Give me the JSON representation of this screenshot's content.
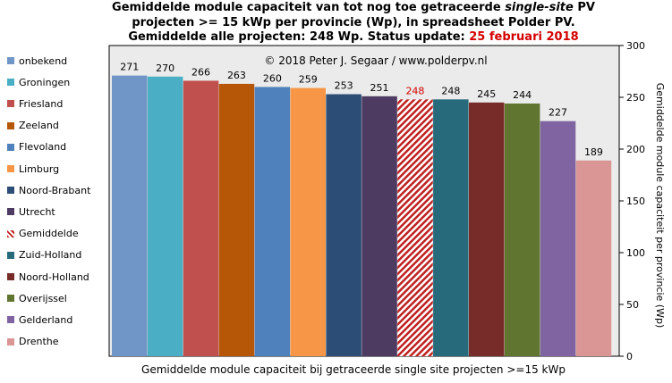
{
  "title": {
    "line1_a": "Gemiddelde module capaciteit van tot nog toe getraceerde ",
    "line1_em": "single-site",
    "line1_b": " PV",
    "line2": "projecten >= 15 kWp per provincie (Wp), in spreadsheet Polder PV.",
    "line3_a": "Gemiddelde alle projecten: 248 Wp. Status update: ",
    "line3_date": "25 februari 2018"
  },
  "copyright": "© 2018 Peter J. Segaar / www.polderpv.nl",
  "colors": {
    "highlight": "#d40000",
    "plot_bg": "#ebebeb",
    "hatch": "#c02020"
  },
  "chart_data": {
    "type": "bar",
    "title": "Gemiddelde module capaciteit van tot nog toe getraceerde single-site PV projecten >= 15 kWp per provincie (Wp), in spreadsheet Polder PV. Gemiddelde alle projecten: 248 Wp. Status update: 25 februari 2018",
    "xlabel": "Gemiddelde module capaciteit bij getraceerde single site projecten >=15 kWp",
    "ylabel": "Gemiddelde module capaciteit per provincie (Wp)",
    "ylim": [
      0,
      300
    ],
    "yticks": [
      0,
      50,
      100,
      150,
      200,
      250,
      300
    ],
    "y_axis_side": "right",
    "grid": false,
    "legend_position": "left",
    "categories": [
      "onbekend",
      "Groningen",
      "Friesland",
      "Zeeland",
      "Flevoland",
      "Limburg",
      "Noord-Brabant",
      "Utrecht",
      "Gemiddelde",
      "Zuid-Holland",
      "Noord-Holland",
      "Overijssel",
      "Gelderland",
      "Drenthe"
    ],
    "values": [
      271,
      270,
      266,
      263,
      260,
      259,
      253,
      251,
      248,
      248,
      245,
      244,
      227,
      189
    ],
    "colors": [
      "#7096c8",
      "#4aaec4",
      "#c0504d",
      "#b65708",
      "#4f81bd",
      "#f79646",
      "#2c4d75",
      "#4e3b62",
      "hatch",
      "#276a7c",
      "#772c2a",
      "#5f7530",
      "#8064a2",
      "#d99694"
    ]
  }
}
